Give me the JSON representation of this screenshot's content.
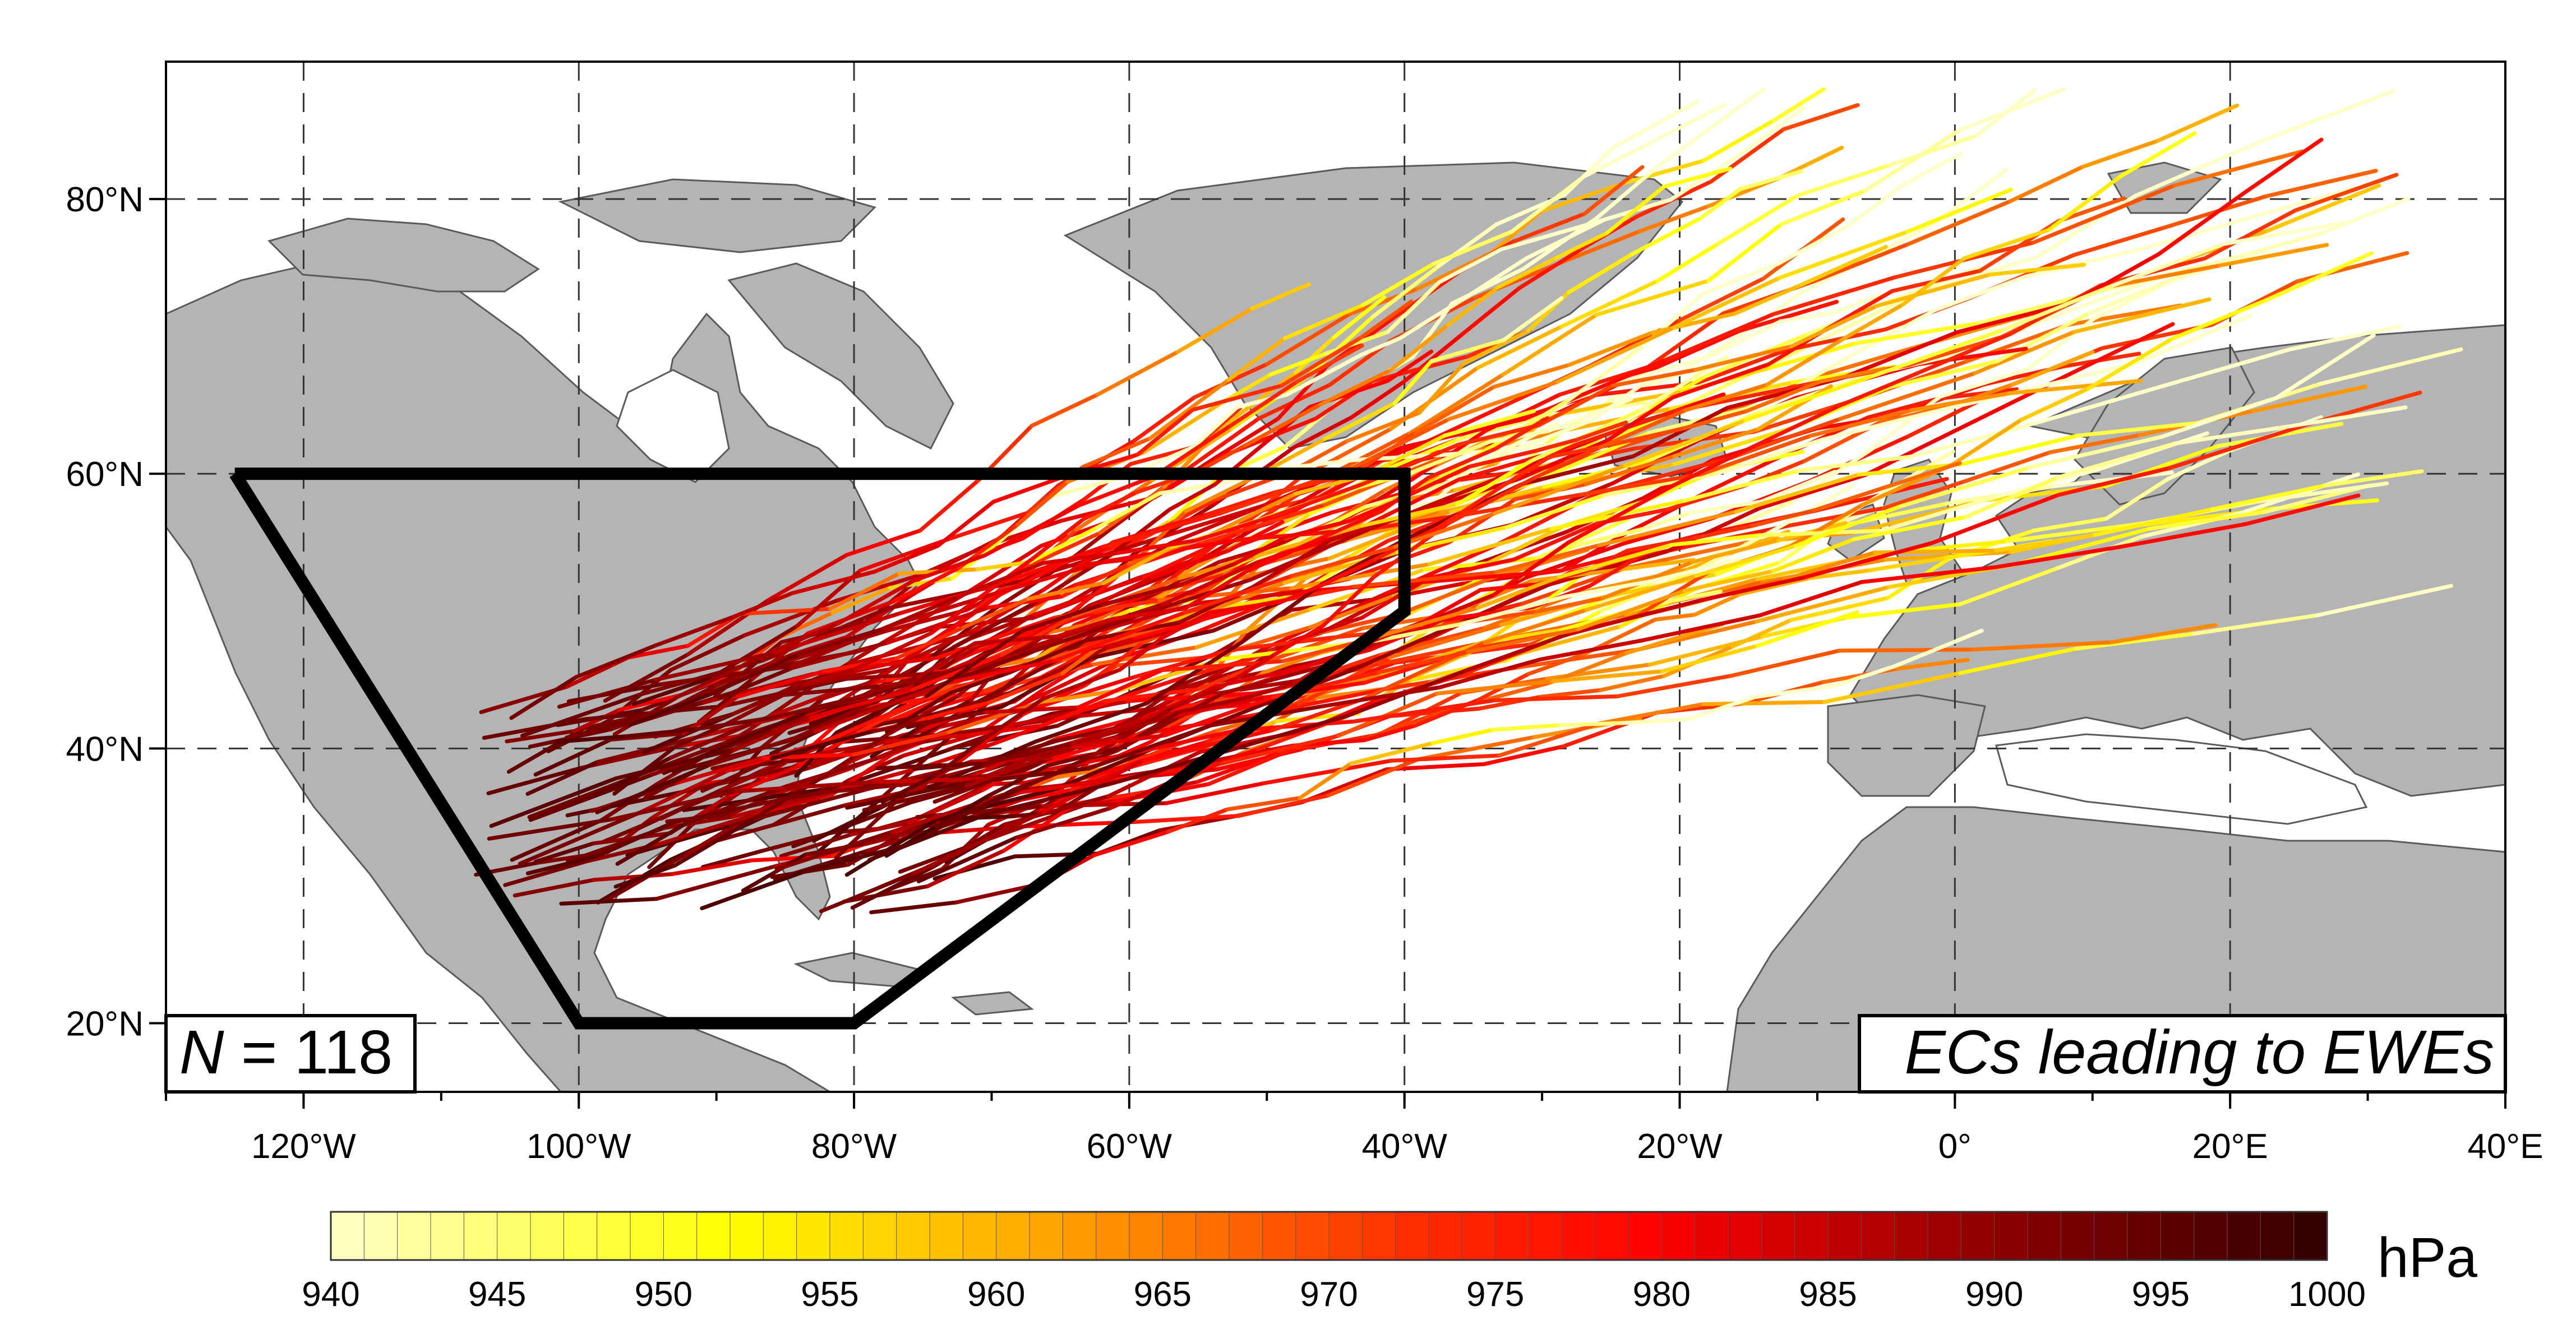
{
  "map": {
    "lon_range": [
      -130,
      40
    ],
    "lat_range": [
      15,
      90
    ],
    "lat_ticks": [
      {
        "value": 80,
        "label": "80°N"
      },
      {
        "value": 60,
        "label": "60°N"
      },
      {
        "value": 40,
        "label": "40°N"
      },
      {
        "value": 20,
        "label": "20°N"
      }
    ],
    "lon_ticks": [
      {
        "value": -120,
        "label": "120°W"
      },
      {
        "value": -100,
        "label": "100°W"
      },
      {
        "value": -80,
        "label": "80°W"
      },
      {
        "value": -60,
        "label": "60°W"
      },
      {
        "value": -40,
        "label": "40°W"
      },
      {
        "value": -20,
        "label": "20°W"
      },
      {
        "value": 0,
        "label": "0°"
      },
      {
        "value": 20,
        "label": "20°E"
      },
      {
        "value": 40,
        "label": "40°E"
      }
    ],
    "grid": true,
    "land_color": "#b4b4b4",
    "ocean_color": "#ffffff"
  },
  "region_polygon": [
    [
      -125,
      60
    ],
    [
      -40,
      60
    ],
    [
      -40,
      50
    ],
    [
      -80,
      20
    ],
    [
      -100,
      20
    ],
    [
      -125,
      60
    ]
  ],
  "annotations": {
    "count_label_italic": "N",
    "count_label_rest": " = 118",
    "title_box": "ECs leading to EWEs"
  },
  "colorbar": {
    "unit": "hPa",
    "min": 940,
    "max": 1000,
    "tick_values": [
      940,
      945,
      950,
      955,
      960,
      965,
      970,
      975,
      980,
      985,
      990,
      995,
      1000
    ],
    "tick_labels": [
      "940",
      "945",
      "950",
      "955",
      "960",
      "965",
      "970",
      "975",
      "980",
      "985",
      "990",
      "995",
      "1000"
    ],
    "stops": [
      {
        "p": 940,
        "color": "#ffffc8"
      },
      {
        "p": 952,
        "color": "#ffff00"
      },
      {
        "p": 962,
        "color": "#ffa000"
      },
      {
        "p": 972,
        "color": "#ff3000"
      },
      {
        "p": 980,
        "color": "#ff0000"
      },
      {
        "p": 990,
        "color": "#8c0000"
      },
      {
        "p": 1000,
        "color": "#320000"
      }
    ]
  },
  "tracks_summary": {
    "count": 118
  }
}
